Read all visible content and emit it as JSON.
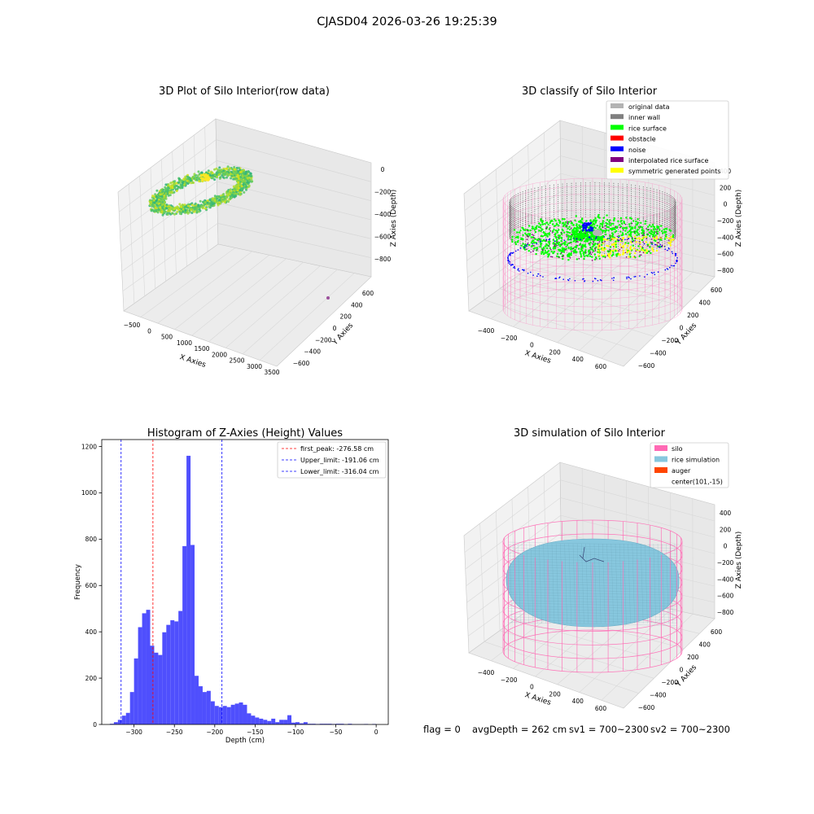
{
  "figure": {
    "suptitle": "CJASD04 2026-03-26 19:25:39",
    "status_line": {
      "flag": "flag = 0",
      "avg_depth": "avgDepth = 262 cm",
      "sv1": "sv1 = 700~2300",
      "sv2": "sv2 = 700~2300"
    }
  },
  "colors": {
    "hist_bar": "#4f4ffd",
    "first_peak_line": "#ff0000",
    "limit_line": "#0000ff",
    "silo_wire": "#ff69b4",
    "rice_sim": "#87c7de",
    "auger": "#ff4500",
    "pane": "#f2f2f2",
    "grid": "#d8d8d8"
  },
  "chart_data": [
    {
      "type": "scatter",
      "projection": "3d",
      "title": "3D Plot of Silo Interior(row data)",
      "xlabel": "X Axies",
      "ylabel": "Y Axies",
      "zlabel": "Z Axies (Depth)",
      "xticks": [
        "−500",
        "0",
        "500",
        "1000",
        "1500",
        "2000",
        "2500",
        "3000",
        "3500"
      ],
      "yticks": [
        "−600",
        "−400",
        "−200",
        "0",
        "200",
        "400",
        "600"
      ],
      "zticks": [
        "0",
        "−200",
        "−400",
        "−600",
        "−800"
      ],
      "xlim": [
        -600,
        3500
      ],
      "ylim": [
        -650,
        650
      ],
      "zlim": [
        -900,
        50
      ],
      "series": [
        {
          "kind": "ring point cloud",
          "colormap": "viridis",
          "center": [
            0,
            0
          ],
          "radius_range": [
            300,
            600
          ],
          "z_range": [
            -300,
            -50
          ]
        },
        {
          "kind": "single outlier",
          "x": 3100,
          "y": 550,
          "z": -850,
          "color": "#9b4f9b"
        }
      ]
    },
    {
      "type": "scatter",
      "projection": "3d",
      "title": "3D classify of Silo Interior",
      "xlabel": "X Axies",
      "ylabel": "Y Axies",
      "zlabel": "Z Axies (Depth)",
      "xticks": [
        "−400",
        "−200",
        "0",
        "200",
        "400",
        "600"
      ],
      "yticks": [
        "−600",
        "−400",
        "−200",
        "0",
        "200",
        "400",
        "600"
      ],
      "zticks": [
        "400",
        "200",
        "0",
        "−200",
        "−400",
        "−600",
        "−800"
      ],
      "legend_position": "upper-right",
      "legend": [
        {
          "label": "original data",
          "color": "#b3b3b3"
        },
        {
          "label": "inner wall",
          "color": "#808080"
        },
        {
          "label": "rice surface",
          "color": "#00ff00"
        },
        {
          "label": "obstacle",
          "color": "#ff0000"
        },
        {
          "label": "noise",
          "color": "#0000ff"
        },
        {
          "label": "interpolated rice surface",
          "color": "#800080"
        },
        {
          "label": "symmetric generated points",
          "color": "#ffff00"
        }
      ]
    },
    {
      "type": "bar",
      "title": "Histogram of Z-Axies (Height) Values",
      "xlabel": "Depth (cm)",
      "ylabel": "Frequency",
      "xlim": [
        -340,
        15
      ],
      "ylim": [
        0,
        1230
      ],
      "xticks": [
        -300,
        -250,
        -200,
        -150,
        -100,
        -50,
        0
      ],
      "xtick_labels": [
        "−300",
        "−250",
        "−200",
        "−150",
        "−100",
        "−50",
        "0"
      ],
      "yticks": [
        0,
        200,
        400,
        600,
        800,
        1000,
        1200
      ],
      "bin_width": 5,
      "bins_start": [
        -330,
        -325,
        -320,
        -315,
        -310,
        -305,
        -300,
        -295,
        -290,
        -285,
        -280,
        -275,
        -270,
        -265,
        -260,
        -255,
        -250,
        -245,
        -240,
        -235,
        -230,
        -225,
        -220,
        -215,
        -210,
        -205,
        -200,
        -195,
        -190,
        -185,
        -180,
        -175,
        -170,
        -165,
        -160,
        -155,
        -150,
        -145,
        -140,
        -135,
        -130,
        -125,
        -120,
        -115,
        -110,
        -105,
        -100,
        -95,
        -90,
        -85,
        -80,
        -75,
        -70,
        -65,
        -60,
        -55,
        -50,
        -45,
        -40,
        -35,
        -30,
        -25,
        -20,
        -15,
        -10,
        -5,
        0
      ],
      "values": [
        3,
        10,
        20,
        38,
        50,
        140,
        285,
        420,
        480,
        495,
        340,
        310,
        300,
        398,
        430,
        450,
        445,
        490,
        770,
        1160,
        775,
        210,
        165,
        140,
        145,
        100,
        80,
        75,
        80,
        75,
        85,
        90,
        95,
        85,
        48,
        38,
        30,
        25,
        20,
        15,
        25,
        10,
        20,
        20,
        40,
        8,
        10,
        5,
        10,
        3,
        3,
        2,
        3,
        3,
        3,
        2,
        3,
        3,
        1,
        3,
        1,
        1,
        1,
        2,
        0,
        2,
        0
      ],
      "vlines": [
        {
          "label": "first_peak: -276.58 cm",
          "x": -276.58,
          "style": "dashed",
          "color": "#ff0000"
        },
        {
          "label": "Upper_limit: -191.06 cm",
          "x": -191.06,
          "style": "dashed",
          "color": "#0000ff"
        },
        {
          "label": "Lower_limit: -316.04 cm",
          "x": -316.04,
          "style": "dashed",
          "color": "#0000ff"
        }
      ],
      "legend_position": "upper-right",
      "grid": false
    },
    {
      "type": "surface",
      "projection": "3d",
      "title": "3D simulation of Silo Interior",
      "xlabel": "X Axies",
      "ylabel": "Y Axies",
      "zlabel": "Z Axies (Depth)",
      "xticks": [
        "−400",
        "−200",
        "0",
        "200",
        "400",
        "600"
      ],
      "yticks": [
        "−600",
        "−400",
        "−200",
        "0",
        "200",
        "400",
        "600"
      ],
      "zticks": [
        "400",
        "200",
        "0",
        "−200",
        "−400",
        "−600",
        "−800"
      ],
      "legend_position": "upper-right",
      "legend": [
        {
          "label": "silo",
          "color": "#ff69b4",
          "marker": "patch"
        },
        {
          "label": "rice simulation",
          "color": "#87c7de",
          "marker": "patch"
        },
        {
          "label": "auger",
          "color": "#ff4500",
          "marker": "patch"
        },
        {
          "label": "center(101,-15)",
          "color": "",
          "marker": "none"
        }
      ]
    }
  ]
}
